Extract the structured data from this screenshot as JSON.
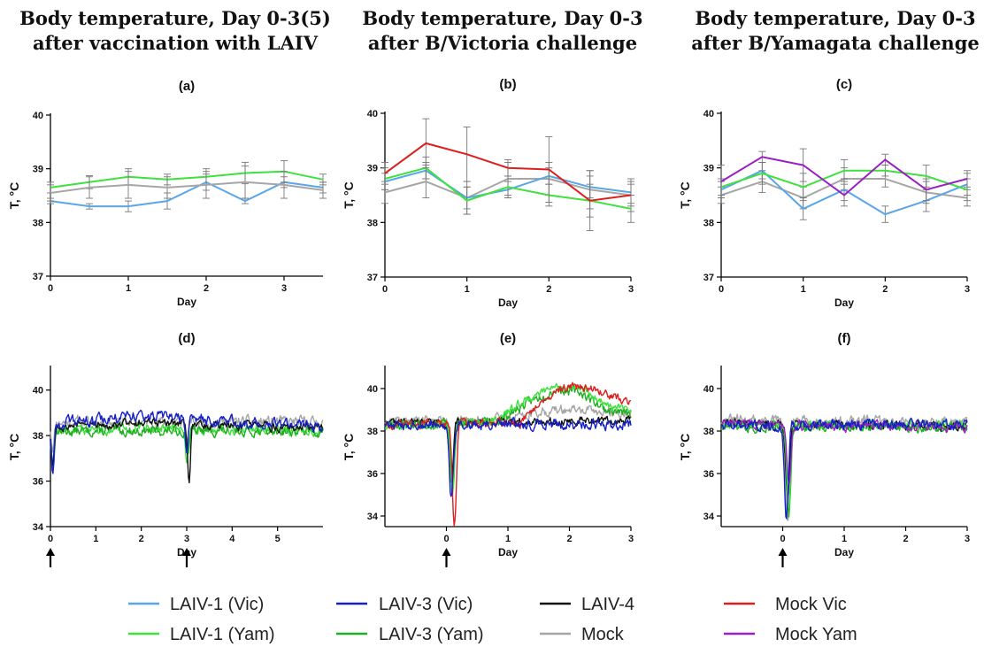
{
  "titles": [
    {
      "line1": "Body temperature, Day 0-3(5)",
      "line2": "after vaccination with LAIV"
    },
    {
      "line1": "Body temperature, Day 0-3",
      "line2": "after B/Victoria challenge"
    },
    {
      "line1": "Body temperature, Day 0-3",
      "line2": "after B/Yamagata challenge"
    }
  ],
  "legend": [
    {
      "label": "LAIV-1 (Vic)",
      "color": "#5aa6e6"
    },
    {
      "label": "LAIV-1 (Yam)",
      "color": "#3ee13e"
    },
    {
      "label": "LAIV-3 (Vic)",
      "color": "#1520c8"
    },
    {
      "label": "LAIV-3 (Yam)",
      "color": "#1fae1f"
    },
    {
      "label": "LAIV-4",
      "color": "#111111"
    },
    {
      "label": "Mock",
      "color": "#a6a6a6"
    },
    {
      "label": "Mock Vic",
      "color": "#dc2020"
    },
    {
      "label": "Mock Yam",
      "color": "#9a1fc4"
    }
  ],
  "chart_data": [
    {
      "id": "a",
      "panel_label": "(a)",
      "type": "line",
      "xlabel": "Day",
      "ylabel": "T, °C",
      "xlim": [
        0,
        3.5
      ],
      "ylim": [
        37,
        40
      ],
      "xticks": [
        0,
        1,
        2,
        3
      ],
      "yticks": [
        37,
        38,
        39,
        40
      ],
      "series": [
        {
          "name": "LAIV-1 (Vic)",
          "color": "#5aa6e6",
          "x": [
            0,
            0.5,
            1,
            1.5,
            2,
            2.5,
            3,
            3.5
          ],
          "y": [
            38.4,
            38.3,
            38.3,
            38.4,
            38.75,
            38.4,
            38.75,
            38.65
          ],
          "err": [
            0.05,
            0.05,
            0.1,
            0.15,
            0.15,
            0.05,
            0.1,
            0.1
          ]
        },
        {
          "name": "LAIV-1 (Yam)",
          "color": "#3ee13e",
          "x": [
            0,
            0.5,
            1,
            1.5,
            2,
            2.5,
            3,
            3.5
          ],
          "y": [
            38.65,
            38.75,
            38.85,
            38.8,
            38.85,
            38.92,
            38.95,
            38.8
          ],
          "err": [
            0.1,
            0.12,
            0.15,
            0.1,
            0.15,
            0.2,
            0.2,
            0.1
          ]
        },
        {
          "name": "Mock",
          "color": "#a6a6a6",
          "x": [
            0,
            0.5,
            1,
            1.5,
            2,
            2.5,
            3,
            3.5
          ],
          "y": [
            38.55,
            38.65,
            38.7,
            38.65,
            38.7,
            38.75,
            38.7,
            38.6
          ],
          "err": [
            0.15,
            0.2,
            0.25,
            0.2,
            0.25,
            0.3,
            0.25,
            0.15
          ]
        }
      ]
    },
    {
      "id": "b",
      "panel_label": "(b)",
      "type": "line",
      "xlabel": "Day",
      "ylabel": "T, °C",
      "xlim": [
        0,
        3
      ],
      "ylim": [
        37,
        40
      ],
      "xticks": [
        0,
        1,
        2,
        3
      ],
      "yticks": [
        37,
        38,
        39,
        40
      ],
      "series": [
        {
          "name": "Mock",
          "color": "#a6a6a6",
          "x": [
            0,
            0.5,
            1,
            1.5,
            2,
            2.5,
            3
          ],
          "y": [
            38.55,
            38.75,
            38.45,
            38.8,
            38.8,
            38.6,
            38.5
          ],
          "err": [
            0.2,
            0.3,
            0.3,
            0.3,
            0.3,
            0.35,
            0.3
          ]
        },
        {
          "name": "LAIV-1 (Vic)",
          "color": "#5aa6e6",
          "x": [
            0,
            0.5,
            1,
            1.5,
            2,
            2.5,
            3
          ],
          "y": [
            38.75,
            38.95,
            38.45,
            38.6,
            38.85,
            38.65,
            38.55
          ],
          "err": [
            0.15,
            0.15,
            0.2,
            0.15,
            0.15,
            0.2,
            0.2
          ]
        },
        {
          "name": "LAIV-1 (Yam)",
          "color": "#3ee13e",
          "x": [
            0,
            0.5,
            1,
            1.5,
            2,
            2.5,
            3
          ],
          "y": [
            38.8,
            39.0,
            38.4,
            38.65,
            38.5,
            38.4,
            38.25
          ],
          "err": [
            0.2,
            0.2,
            0.25,
            0.2,
            0.2,
            0.3,
            0.25
          ]
        },
        {
          "name": "Mock Vic",
          "color": "#dc2020",
          "x": [
            0,
            0.5,
            1,
            1.5,
            2,
            2.5,
            3
          ],
          "y": [
            38.9,
            39.45,
            39.25,
            39.0,
            38.97,
            38.4,
            38.5
          ],
          "err": [
            0.2,
            0.45,
            0.5,
            0.15,
            0.6,
            0.55,
            0.2
          ]
        }
      ]
    },
    {
      "id": "c",
      "panel_label": "(c)",
      "type": "line",
      "xlabel": "Day",
      "ylabel": "T, °C",
      "xlim": [
        0,
        3
      ],
      "ylim": [
        37,
        40
      ],
      "xticks": [
        0,
        1,
        2,
        3
      ],
      "yticks": [
        37,
        38,
        39,
        40
      ],
      "series": [
        {
          "name": "Mock",
          "color": "#a6a6a6",
          "x": [
            0,
            0.5,
            1,
            1.5,
            2,
            2.5,
            3
          ],
          "y": [
            38.5,
            38.75,
            38.45,
            38.8,
            38.8,
            38.55,
            38.45
          ],
          "err": [
            0.15,
            0.2,
            0.2,
            0.2,
            0.15,
            0.2,
            0.15
          ]
        },
        {
          "name": "LAIV-1 (Vic)",
          "color": "#5aa6e6",
          "x": [
            0,
            0.5,
            1,
            1.5,
            2,
            2.5,
            3
          ],
          "y": [
            38.6,
            38.95,
            38.25,
            38.6,
            38.15,
            38.4,
            38.7
          ],
          "err": [
            0.15,
            0.15,
            0.2,
            0.2,
            0.15,
            0.2,
            0.2
          ]
        },
        {
          "name": "LAIV-1 (Yam)",
          "color": "#3ee13e",
          "x": [
            0,
            0.5,
            1,
            1.5,
            2,
            2.5,
            3
          ],
          "y": [
            38.65,
            38.9,
            38.65,
            38.95,
            38.95,
            38.85,
            38.6
          ],
          "err": [
            0.15,
            0.2,
            0.25,
            0.2,
            0.1,
            0.2,
            0.2
          ]
        },
        {
          "name": "Mock Yam",
          "color": "#9a1fc4",
          "x": [
            0,
            0.5,
            1,
            1.5,
            2,
            2.5,
            3
          ],
          "y": [
            38.75,
            39.2,
            39.05,
            38.5,
            39.15,
            38.6,
            38.8
          ],
          "err": [
            0.3,
            0.1,
            0.3,
            0.2,
            0.1,
            0.2,
            0.15
          ]
        }
      ]
    },
    {
      "id": "d",
      "panel_label": "(d)",
      "type": "line",
      "xlabel": "Day",
      "ylabel": "T, °C",
      "xlim": [
        0,
        6
      ],
      "ylim": [
        34,
        41
      ],
      "xticks": [
        0,
        1,
        2,
        3,
        4,
        5
      ],
      "yticks": [
        34,
        36,
        38,
        40
      ],
      "arrows_at": [
        0,
        3
      ],
      "series": [
        {
          "name": "Mock",
          "color": "#a6a6a6",
          "base": [
            [
              0,
              38.6
            ],
            [
              6,
              38.6
            ]
          ],
          "dips": [
            [
              0.05,
              37.5
            ],
            [
              3.0,
              37.8
            ]
          ],
          "amp": 0.28,
          "seed": 11
        },
        {
          "name": "LAIV-1 (Yam)",
          "color": "#3ee13e",
          "base": [
            [
              0,
              38.2
            ],
            [
              2,
              38.3
            ],
            [
              6,
              38.2
            ]
          ],
          "dips": [
            [
              0.05,
              37.0
            ],
            [
              3.0,
              37.0
            ]
          ],
          "amp": 0.25,
          "seed": 12
        },
        {
          "name": "LAIV-3 (Yam)",
          "color": "#1fae1f",
          "base": [
            [
              0,
              38.2
            ],
            [
              6,
              38.2
            ]
          ],
          "dips": [
            [
              0.05,
              36.6
            ],
            [
              3.02,
              37.2
            ]
          ],
          "amp": 0.25,
          "seed": 13
        },
        {
          "name": "LAIV-4",
          "color": "#111111",
          "base": [
            [
              0,
              38.4
            ],
            [
              2,
              38.6
            ],
            [
              6,
              38.3
            ]
          ],
          "dips": [
            [
              0.05,
              36.8
            ],
            [
              3.05,
              35.8
            ]
          ],
          "amp": 0.22,
          "seed": 14
        },
        {
          "name": "LAIV-3 (Vic)",
          "color": "#1520c8",
          "base": [
            [
              0,
              38.5
            ],
            [
              2,
              38.9
            ],
            [
              4,
              38.6
            ],
            [
              6,
              38.4
            ]
          ],
          "dips": [
            [
              0.05,
              36.5
            ],
            [
              3.0,
              37.5
            ]
          ],
          "amp": 0.28,
          "seed": 15
        }
      ]
    },
    {
      "id": "e",
      "panel_label": "(e)",
      "type": "line",
      "xlabel": "Day",
      "ylabel": "T, °C",
      "xlim": [
        -1,
        3
      ],
      "ylim": [
        33.5,
        41
      ],
      "xticks": [
        0,
        1,
        2,
        3
      ],
      "yticks": [
        34,
        36,
        38,
        40
      ],
      "arrows_at": [
        0
      ],
      "series": [
        {
          "name": "Mock",
          "color": "#a6a6a6",
          "base": [
            [
              -1,
              38.5
            ],
            [
              1,
              38.6
            ],
            [
              1.5,
              38.9
            ],
            [
              2,
              39.0
            ],
            [
              3,
              38.8
            ]
          ],
          "dips": [
            [
              0.1,
              35.8
            ]
          ],
          "amp": 0.25,
          "seed": 21
        },
        {
          "name": "LAIV-4",
          "color": "#111111",
          "base": [
            [
              -1,
              38.4
            ],
            [
              3,
              38.5
            ]
          ],
          "dips": [
            [
              0.08,
              35.5
            ]
          ],
          "amp": 0.2,
          "seed": 22
        },
        {
          "name": "LAIV-3 (Yam)",
          "color": "#1fae1f",
          "base": [
            [
              -1,
              38.3
            ],
            [
              0.8,
              38.4
            ],
            [
              1.3,
              39.3
            ],
            [
              1.8,
              40.0
            ],
            [
              2.2,
              39.8
            ],
            [
              2.6,
              39.0
            ],
            [
              3,
              38.8
            ]
          ],
          "dips": [
            [
              0.1,
              35.3
            ]
          ],
          "amp": 0.25,
          "seed": 23
        },
        {
          "name": "LAIV-1 (Yam)",
          "color": "#3ee13e",
          "base": [
            [
              -1,
              38.2
            ],
            [
              0.8,
              38.5
            ],
            [
              1.3,
              39.5
            ],
            [
              1.8,
              40.1
            ],
            [
              2.2,
              40.0
            ],
            [
              2.6,
              39.2
            ],
            [
              3,
              38.9
            ]
          ],
          "dips": [
            [
              0.1,
              35.0
            ]
          ],
          "amp": 0.22,
          "seed": 24
        },
        {
          "name": "Mock Vic",
          "color": "#dc2020",
          "base": [
            [
              -1,
              38.3
            ],
            [
              1.2,
              38.4
            ],
            [
              1.6,
              39.6
            ],
            [
              2.0,
              40.1
            ],
            [
              2.4,
              40.0
            ],
            [
              2.8,
              39.5
            ],
            [
              3,
              39.4
            ]
          ],
          "dips": [
            [
              0.13,
              33.5
            ]
          ],
          "amp": 0.22,
          "seed": 25
        },
        {
          "name": "LAIV-3 (Vic)",
          "color": "#1520c8",
          "base": [
            [
              -1,
              38.3
            ],
            [
              3,
              38.3
            ]
          ],
          "dips": [
            [
              0.08,
              34.8
            ]
          ],
          "amp": 0.28,
          "seed": 26
        }
      ]
    },
    {
      "id": "f",
      "panel_label": "(f)",
      "type": "line",
      "xlabel": "Day",
      "ylabel": "T, °C",
      "xlim": [
        -1,
        3
      ],
      "ylim": [
        33.5,
        41
      ],
      "xticks": [
        0,
        1,
        2,
        3
      ],
      "yticks": [
        34,
        36,
        38,
        40
      ],
      "arrows_at": [
        0
      ],
      "series": [
        {
          "name": "Mock",
          "color": "#a6a6a6",
          "base": [
            [
              -1,
              38.5
            ],
            [
              3,
              38.4
            ]
          ],
          "dips": [
            [
              0.08,
              33.6
            ]
          ],
          "amp": 0.3,
          "seed": 31
        },
        {
          "name": "LAIV-4",
          "color": "#111111",
          "base": [
            [
              -1,
              38.4
            ],
            [
              3,
              38.2
            ]
          ],
          "dips": [
            [
              0.08,
              35.0
            ]
          ],
          "amp": 0.22,
          "seed": 32
        },
        {
          "name": "LAIV-3 (Yam)",
          "color": "#1fae1f",
          "base": [
            [
              -1,
              38.2
            ],
            [
              3,
              38.2
            ]
          ],
          "dips": [
            [
              0.1,
              34.0
            ]
          ],
          "amp": 0.25,
          "seed": 33
        },
        {
          "name": "LAIV-1 (Yam)",
          "color": "#3ee13e",
          "base": [
            [
              -1,
              38.3
            ],
            [
              3,
              38.3
            ]
          ],
          "dips": [
            [
              0.1,
              34.3
            ]
          ],
          "amp": 0.22,
          "seed": 34
        },
        {
          "name": "Mock Yam",
          "color": "#9a1fc4",
          "base": [
            [
              -1,
              38.3
            ],
            [
              3,
              38.2
            ]
          ],
          "dips": [
            [
              0.1,
              35.5
            ]
          ],
          "amp": 0.25,
          "seed": 35
        },
        {
          "name": "LAIV-3 (Vic)",
          "color": "#1520c8",
          "base": [
            [
              -1,
              38.3
            ],
            [
              3,
              38.3
            ]
          ],
          "dips": [
            [
              0.06,
              34.0
            ]
          ],
          "amp": 0.28,
          "seed": 36
        }
      ]
    }
  ]
}
